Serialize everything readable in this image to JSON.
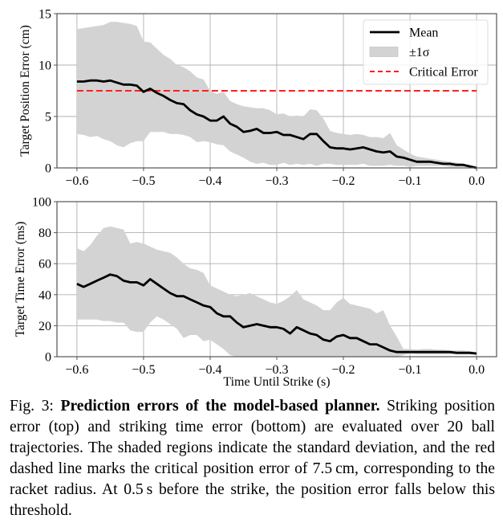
{
  "chart_data": [
    {
      "type": "line",
      "panel": "top",
      "title": "",
      "xlabel": "",
      "ylabel": "Target Position Error (cm)",
      "xlim": [
        -0.63,
        0.03
      ],
      "ylim": [
        0,
        15
      ],
      "xticks": [
        -0.6,
        -0.5,
        -0.4,
        -0.3,
        -0.2,
        -0.1,
        0.0
      ],
      "xtick_labels": [
        "−0.6",
        "−0.5",
        "−0.4",
        "−0.3",
        "−0.2",
        "−0.1",
        "0.0"
      ],
      "yticks": [
        0,
        5,
        10,
        15
      ],
      "ytick_labels": [
        "0",
        "5",
        "10",
        "15"
      ],
      "grid": true,
      "legend": {
        "position": "top-right",
        "entries": [
          {
            "label": "Mean",
            "style": "line",
            "color": "#000000"
          },
          {
            "label": "±1σ",
            "style": "band",
            "color": "#d3d3d3"
          },
          {
            "label": "Critical Error",
            "style": "dashed",
            "color": "#ff2020"
          }
        ]
      },
      "hline": {
        "label": "Critical Error",
        "y": 7.5,
        "x_range": [
          -0.6,
          0.0
        ],
        "color": "#ff2020"
      },
      "x": [
        -0.6,
        -0.59,
        -0.58,
        -0.57,
        -0.56,
        -0.55,
        -0.54,
        -0.53,
        -0.52,
        -0.51,
        -0.5,
        -0.49,
        -0.48,
        -0.47,
        -0.46,
        -0.45,
        -0.44,
        -0.43,
        -0.42,
        -0.41,
        -0.4,
        -0.39,
        -0.38,
        -0.37,
        -0.36,
        -0.35,
        -0.34,
        -0.33,
        -0.32,
        -0.31,
        -0.3,
        -0.29,
        -0.28,
        -0.27,
        -0.26,
        -0.25,
        -0.24,
        -0.23,
        -0.22,
        -0.21,
        -0.2,
        -0.19,
        -0.18,
        -0.17,
        -0.16,
        -0.15,
        -0.14,
        -0.13,
        -0.12,
        -0.11,
        -0.1,
        -0.09,
        -0.08,
        -0.07,
        -0.06,
        -0.05,
        -0.04,
        -0.03,
        -0.02,
        -0.01,
        0.0
      ],
      "series": [
        {
          "name": "Mean",
          "values": [
            8.4,
            8.4,
            8.5,
            8.5,
            8.4,
            8.5,
            8.3,
            8.1,
            8.1,
            8.0,
            7.4,
            7.7,
            7.3,
            7.0,
            6.6,
            6.3,
            6.2,
            5.6,
            5.2,
            5.0,
            4.6,
            4.6,
            5.0,
            4.3,
            4.0,
            3.5,
            3.6,
            3.8,
            3.4,
            3.4,
            3.5,
            3.2,
            3.2,
            3.0,
            2.8,
            3.3,
            3.3,
            2.6,
            2.0,
            1.9,
            1.9,
            1.8,
            1.9,
            2.0,
            1.8,
            1.6,
            1.5,
            1.6,
            1.1,
            1.0,
            0.8,
            0.6,
            0.6,
            0.6,
            0.5,
            0.4,
            0.4,
            0.3,
            0.3,
            0.15,
            0.0
          ]
        },
        {
          "name": "upper",
          "values": [
            13.5,
            13.6,
            13.7,
            13.8,
            13.9,
            14.2,
            14.2,
            14.1,
            14.0,
            13.8,
            12.3,
            12.2,
            11.6,
            11.0,
            10.6,
            10.0,
            9.8,
            9.4,
            8.8,
            8.6,
            7.5,
            7.2,
            7.4,
            6.5,
            6.2,
            6.0,
            5.9,
            5.8,
            5.8,
            5.6,
            5.2,
            5.3,
            5.0,
            5.1,
            5.0,
            5.7,
            5.6,
            4.8,
            3.6,
            3.4,
            3.3,
            3.2,
            3.3,
            3.2,
            3.0,
            3.0,
            2.9,
            3.4,
            2.2,
            1.8,
            1.4,
            1.1,
            1.0,
            0.9,
            0.8,
            0.7,
            0.6,
            0.5,
            0.4,
            0.2,
            0.0
          ]
        },
        {
          "name": "lower",
          "values": [
            3.3,
            3.2,
            3.0,
            3.1,
            2.8,
            2.6,
            2.2,
            2.0,
            2.4,
            2.6,
            2.6,
            3.5,
            3.5,
            3.5,
            3.3,
            3.3,
            3.2,
            3.0,
            2.5,
            2.6,
            2.5,
            2.3,
            2.2,
            1.6,
            1.3,
            1.0,
            0.6,
            0.4,
            0.5,
            0.3,
            0.3,
            0.5,
            0.3,
            0.4,
            0.3,
            0.4,
            0.2,
            0.4,
            0.4,
            0.3,
            0.3,
            0.3,
            0.3,
            0.4,
            0.2,
            0.2,
            0.2,
            0.3,
            0.2,
            0.2,
            0.1,
            0.2,
            0.2,
            0.2,
            0.2,
            0.2,
            0.1,
            0.1,
            0.1,
            0.05,
            0.0
          ]
        }
      ]
    },
    {
      "type": "line",
      "panel": "bottom",
      "title": "",
      "xlabel": "Time Until Strike (s)",
      "ylabel": "Target Time Error (ms)",
      "xlim": [
        -0.63,
        0.03
      ],
      "ylim": [
        0,
        100
      ],
      "xticks": [
        -0.6,
        -0.5,
        -0.4,
        -0.3,
        -0.2,
        -0.1,
        0.0
      ],
      "xtick_labels": [
        "−0.6",
        "−0.5",
        "−0.4",
        "−0.3",
        "−0.2",
        "−0.1",
        "0.0"
      ],
      "yticks": [
        0,
        20,
        40,
        60,
        80,
        100
      ],
      "ytick_labels": [
        "0",
        "20",
        "40",
        "60",
        "80",
        "100"
      ],
      "grid": true,
      "x": [
        -0.6,
        -0.59,
        -0.58,
        -0.57,
        -0.56,
        -0.55,
        -0.54,
        -0.53,
        -0.52,
        -0.51,
        -0.5,
        -0.49,
        -0.48,
        -0.47,
        -0.46,
        -0.45,
        -0.44,
        -0.43,
        -0.42,
        -0.41,
        -0.4,
        -0.39,
        -0.38,
        -0.37,
        -0.36,
        -0.35,
        -0.34,
        -0.33,
        -0.32,
        -0.31,
        -0.3,
        -0.29,
        -0.28,
        -0.27,
        -0.26,
        -0.25,
        -0.24,
        -0.23,
        -0.22,
        -0.21,
        -0.2,
        -0.19,
        -0.18,
        -0.17,
        -0.16,
        -0.15,
        -0.14,
        -0.13,
        -0.12,
        -0.11,
        -0.1,
        -0.09,
        -0.08,
        -0.07,
        -0.06,
        -0.05,
        -0.04,
        -0.03,
        -0.02,
        -0.01,
        0.0
      ],
      "series": [
        {
          "name": "Mean",
          "values": [
            47,
            45,
            47,
            49,
            51,
            53,
            52,
            49,
            48,
            48,
            46,
            50,
            47,
            44,
            41,
            39,
            39,
            37,
            35,
            33,
            32,
            28,
            26,
            26,
            22,
            19,
            20,
            21,
            20,
            19,
            19,
            18,
            15,
            19,
            17,
            15,
            14,
            11,
            10,
            13,
            14,
            12,
            12,
            10,
            8,
            8,
            6,
            4,
            3,
            3,
            3,
            3,
            3,
            3,
            3,
            3,
            3,
            2.5,
            2.5,
            2.5,
            2
          ]
        },
        {
          "name": "upper",
          "values": [
            70,
            68,
            72,
            78,
            83,
            84,
            83,
            82,
            73,
            74,
            73,
            71,
            69,
            68,
            67,
            64,
            60,
            57,
            56,
            54,
            46,
            44,
            42,
            40,
            39,
            40,
            41,
            39,
            37,
            35,
            34,
            36,
            39,
            43,
            37,
            35,
            33,
            30,
            30,
            35,
            38,
            34,
            33,
            32,
            31,
            28,
            30,
            20,
            13,
            5,
            5,
            4.5,
            5,
            5,
            4.5,
            4.5,
            4,
            4,
            4,
            3.5,
            3
          ]
        },
        {
          "name": "lower",
          "values": [
            24,
            24,
            24,
            24,
            23,
            23,
            22,
            22,
            17,
            16,
            16,
            22,
            26,
            24,
            21,
            18,
            12,
            14,
            14,
            10,
            11,
            8,
            5,
            1,
            0,
            0,
            0,
            0,
            0,
            0,
            0,
            0,
            0,
            0,
            0,
            0,
            0,
            0,
            0,
            0,
            0,
            0,
            0,
            0,
            0,
            0,
            0,
            0,
            0,
            1,
            2,
            1.5,
            1.5,
            1.5,
            1.5,
            1.5,
            1.5,
            1.5,
            1.5,
            1.5,
            1.5
          ]
        }
      ]
    }
  ],
  "caption": {
    "label": "Fig. 3:",
    "bold_title": "Prediction errors of the model-based planner.",
    "body": "Striking position error (top) and striking time error (bottom) are evaluated over 20 ball trajectories. The shaded regions indicate the standard deviation, and the red dashed line marks the critical position error of 7.5 cm, corresponding to the racket radius. At 0.5 s before the strike, the position error falls below this threshold."
  }
}
